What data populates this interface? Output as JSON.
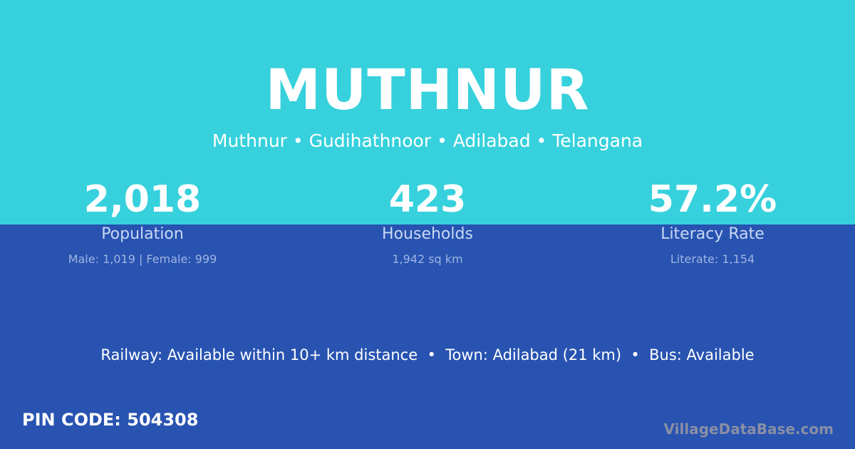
{
  "village": {
    "name": "MUTHNUR",
    "breadcrumb": "Muthnur • Gudihathnoor • Adilabad • Telangana"
  },
  "stats": [
    {
      "value": "2,018",
      "label": "Population",
      "detail": "Male: 1,019 | Female: 999"
    },
    {
      "value": "423",
      "label": "Households",
      "detail": "1,942 sq km"
    },
    {
      "value": "57.2%",
      "label": "Literacy Rate",
      "detail": "Literate: 1,154"
    }
  ],
  "connectivity": "Railway: Available within 10+ km distance  •  Town: Adilabad (21 km)  •  Bus: Available",
  "pin_code": "PIN CODE: 504308",
  "brand": "VillageDataBase.com",
  "colors": {
    "top": "#36D1DC",
    "bottom": "#2853B1"
  }
}
